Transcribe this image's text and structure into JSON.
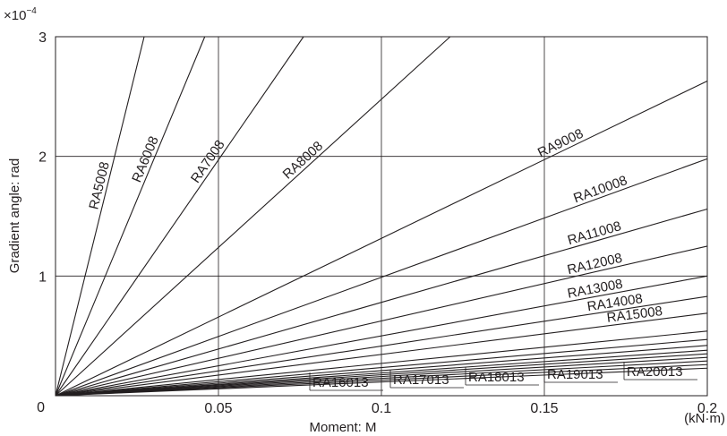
{
  "chart_data": {
    "type": "line",
    "title": "",
    "xlabel": "Moment: M",
    "xunit": "(kN·m)",
    "ylabel": "Gradient angle: rad",
    "yexponent": "×10",
    "yexponent_sup": "−4",
    "xlim": [
      0,
      0.2
    ],
    "ylim": [
      0,
      3
    ],
    "grid": true,
    "xticks": [
      {
        "v": 0,
        "label": "0"
      },
      {
        "v": 0.05,
        "label": "0.05"
      },
      {
        "v": 0.1,
        "label": "0.1"
      },
      {
        "v": 0.15,
        "label": "0.15"
      },
      {
        "v": 0.2,
        "label": "0.2"
      }
    ],
    "yticks": [
      {
        "v": 1,
        "label": "1"
      },
      {
        "v": 2,
        "label": "2"
      },
      {
        "v": 3,
        "label": "3"
      }
    ],
    "origin_label": "0",
    "series": [
      {
        "name": "RA5008",
        "x": [
          0,
          0.0272
        ],
        "y": [
          0,
          3
        ]
      },
      {
        "name": "RA6008",
        "x": [
          0,
          0.0458
        ],
        "y": [
          0,
          3
        ]
      },
      {
        "name": "RA7008",
        "x": [
          0,
          0.0761
        ],
        "y": [
          0,
          3
        ]
      },
      {
        "name": "RA8008",
        "x": [
          0,
          0.1211
        ],
        "y": [
          0,
          3
        ]
      },
      {
        "name": "RA9008",
        "x": [
          0,
          0.2
        ],
        "y": [
          0,
          2.63
        ]
      },
      {
        "name": "RA10008",
        "x": [
          0,
          0.2
        ],
        "y": [
          0,
          1.98
        ]
      },
      {
        "name": "RA11008",
        "x": [
          0,
          0.2
        ],
        "y": [
          0,
          1.56
        ]
      },
      {
        "name": "RA12008",
        "x": [
          0,
          0.2
        ],
        "y": [
          0,
          1.25
        ]
      },
      {
        "name": "RA13008",
        "x": [
          0,
          0.2
        ],
        "y": [
          0,
          1.0
        ]
      },
      {
        "name": "RA14008",
        "x": [
          0,
          0.2
        ],
        "y": [
          0,
          0.83
        ]
      },
      {
        "name": "RA15008",
        "x": [
          0,
          0.2
        ],
        "y": [
          0,
          0.69
        ]
      },
      {
        "name": "",
        "x": [
          0,
          0.2
        ],
        "y": [
          0,
          0.54
        ]
      },
      {
        "name": "",
        "x": [
          0,
          0.2
        ],
        "y": [
          0,
          0.47
        ]
      },
      {
        "name": "",
        "x": [
          0,
          0.2
        ],
        "y": [
          0,
          0.42
        ]
      },
      {
        "name": "",
        "x": [
          0,
          0.2
        ],
        "y": [
          0,
          0.38
        ]
      },
      {
        "name": "RA16013",
        "x": [
          0,
          0.2
        ],
        "y": [
          0,
          0.35
        ]
      },
      {
        "name": "RA17013",
        "x": [
          0,
          0.2
        ],
        "y": [
          0,
          0.32
        ]
      },
      {
        "name": "RA18013",
        "x": [
          0,
          0.2
        ],
        "y": [
          0,
          0.29
        ]
      },
      {
        "name": "RA19013",
        "x": [
          0,
          0.2
        ],
        "y": [
          0,
          0.26
        ]
      },
      {
        "name": "RA20013",
        "x": [
          0,
          0.2
        ],
        "y": [
          0,
          0.23
        ]
      }
    ]
  }
}
